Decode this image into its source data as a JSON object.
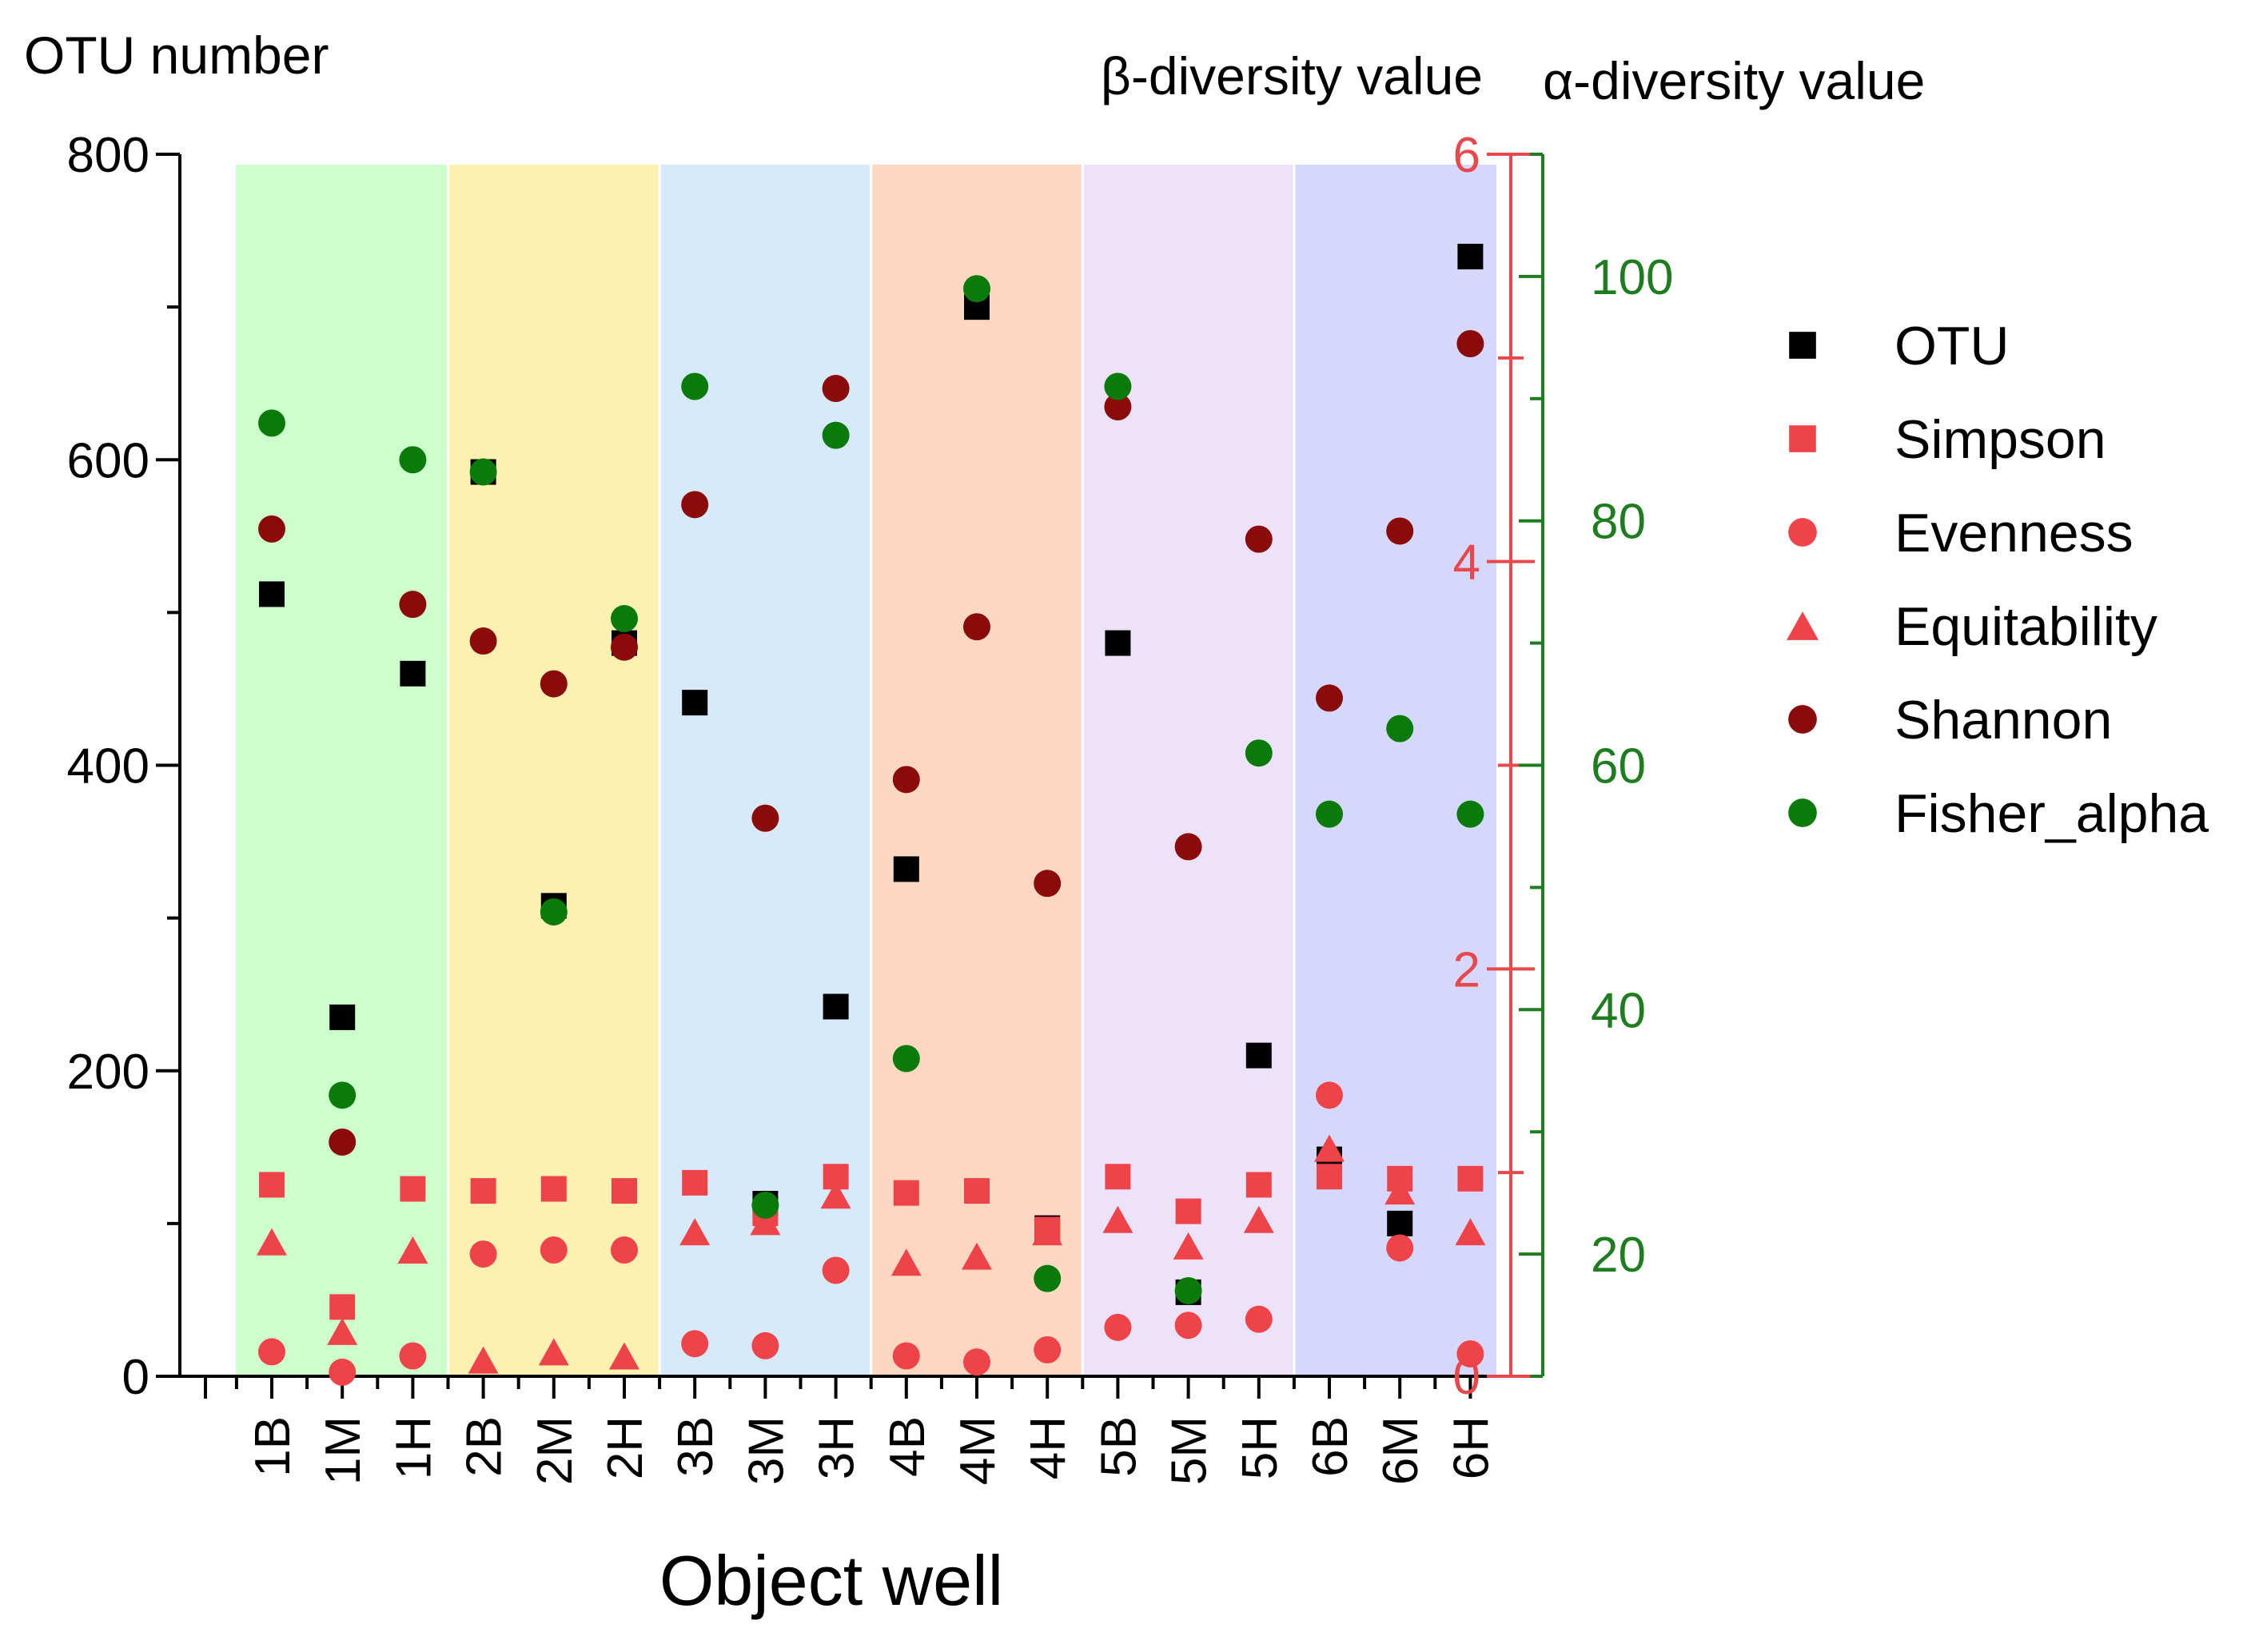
{
  "chart_data": {
    "type": "scatter",
    "xlabel": "Object well",
    "categories": [
      "1B",
      "1M",
      "1H",
      "2B",
      "2M",
      "2H",
      "3B",
      "3M",
      "3H",
      "4B",
      "4M",
      "4H",
      "5B",
      "5M",
      "5H",
      "6B",
      "6M",
      "6H"
    ],
    "axes": {
      "left": {
        "title": "OTU number",
        "range": [
          0,
          800
        ],
        "ticks": [
          0,
          200,
          400,
          600,
          800
        ],
        "color": "#000000"
      },
      "beta": {
        "title": "β-diversity value",
        "range": [
          0,
          6
        ],
        "ticks": [
          0,
          2,
          4,
          6
        ],
        "color": "#e8474b"
      },
      "alpha": {
        "title": "α-diversity value",
        "range": [
          10,
          110
        ],
        "ticks": [
          20,
          40,
          60,
          80,
          100
        ],
        "color": "#1e7d1e"
      }
    },
    "bands": [
      {
        "group": "1",
        "color": "#ccffcc"
      },
      {
        "group": "2",
        "color": "#fdf1b2"
      },
      {
        "group": "3",
        "color": "#d6eafb"
      },
      {
        "group": "4",
        "color": "#fcd8c2"
      },
      {
        "group": "5",
        "color": "#ece3fb"
      },
      {
        "group": "6",
        "color": "#d5d8fc"
      }
    ],
    "series": [
      {
        "name": "OTU",
        "axis": "left",
        "marker": "square",
        "color": "#000000",
        "values": [
          512,
          235,
          460,
          592,
          308,
          480,
          441,
          113,
          242,
          332,
          700,
          97,
          480,
          55,
          210,
          142,
          100,
          733
        ]
      },
      {
        "name": "Simpson",
        "axis": "beta",
        "marker": "square",
        "color": "#ee4449",
        "values": [
          0.94,
          0.34,
          0.92,
          0.91,
          0.92,
          0.91,
          0.95,
          0.8,
          0.98,
          0.9,
          0.91,
          0.72,
          0.98,
          0.81,
          0.94,
          0.98,
          0.97,
          0.97
        ]
      },
      {
        "name": "Evenness",
        "axis": "beta",
        "marker": "circle",
        "color": "#ee4449",
        "values": [
          0.12,
          0.02,
          0.1,
          0.6,
          0.62,
          0.62,
          0.16,
          0.15,
          0.52,
          0.1,
          0.07,
          0.13,
          0.24,
          0.25,
          0.28,
          1.38,
          0.63,
          0.11
        ]
      },
      {
        "name": "Equitability",
        "axis": "beta",
        "marker": "triangle",
        "color": "#ee4449",
        "values": [
          0.66,
          0.22,
          0.62,
          0.08,
          0.12,
          0.1,
          0.71,
          0.76,
          0.89,
          0.56,
          0.59,
          0.71,
          0.77,
          0.64,
          0.77,
          1.12,
          0.91,
          0.71
        ]
      },
      {
        "name": "Shannon",
        "axis": "beta",
        "marker": "circle",
        "color": "#8b0a0a",
        "values": [
          4.16,
          1.15,
          3.79,
          3.61,
          3.4,
          3.58,
          4.28,
          2.74,
          4.85,
          2.93,
          3.68,
          2.42,
          4.76,
          2.6,
          4.11,
          3.33,
          4.15,
          5.07
        ]
      },
      {
        "name": "Fisher_alpha",
        "axis": "alpha",
        "marker": "circle",
        "color": "#0a7a0a",
        "values": [
          88,
          33,
          85,
          84,
          48,
          72,
          91,
          24,
          87,
          36,
          99,
          18,
          91,
          17,
          61,
          56,
          63,
          56
        ]
      }
    ]
  }
}
